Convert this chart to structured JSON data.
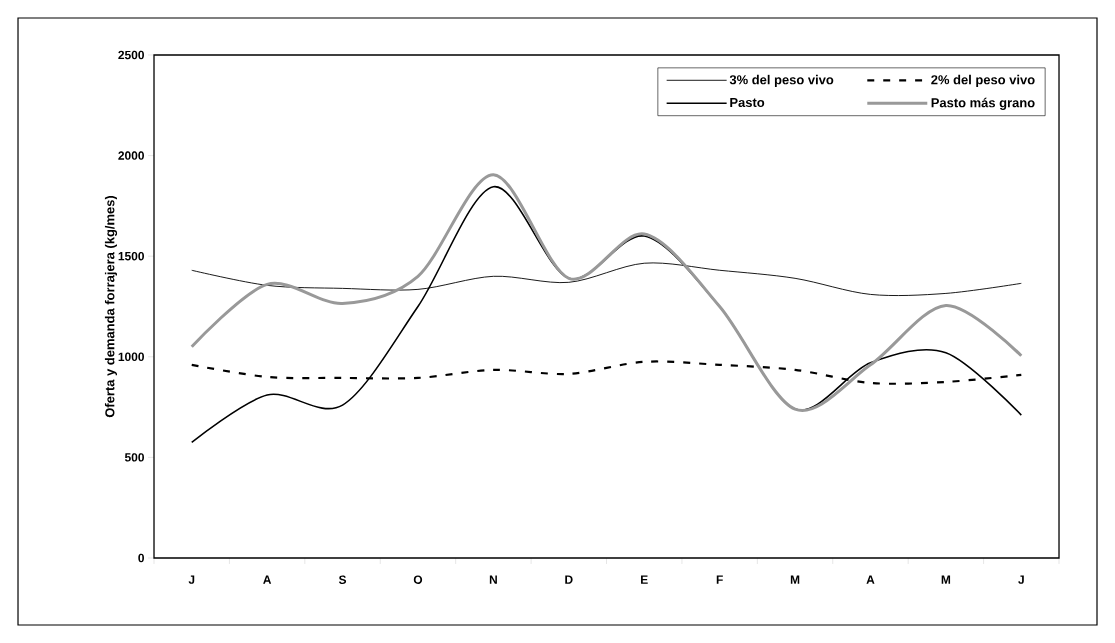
{
  "chart_data": {
    "type": "line",
    "ylabel": "Oferta y demanda forrajera (kg/mes)",
    "categories": [
      "J",
      "A",
      "S",
      "O",
      "N",
      "D",
      "E",
      "F",
      "M",
      "A",
      "M",
      "J"
    ],
    "series": [
      {
        "name": "3% del peso vivo",
        "color": "#000000",
        "line_style": "solid",
        "values": [
          1430,
          1355,
          1340,
          1335,
          1400,
          1370,
          1465,
          1430,
          1390,
          1310,
          1315,
          1365
        ]
      },
      {
        "name": "2% del peso vivo",
        "color": "#000000",
        "line_style": "dashed",
        "values": [
          960,
          900,
          895,
          895,
          935,
          915,
          975,
          960,
          935,
          870,
          875,
          910
        ]
      },
      {
        "name": "Pasto",
        "color": "#000000",
        "line_style": "solid",
        "values": [
          575,
          810,
          760,
          1250,
          1845,
          1390,
          1600,
          1250,
          740,
          970,
          1020,
          710
        ]
      },
      {
        "name": "Pasto más grano",
        "color": "#999999",
        "line_style": "solid",
        "values": [
          1050,
          1360,
          1265,
          1400,
          1905,
          1390,
          1610,
          1250,
          740,
          960,
          1255,
          1005
        ]
      }
    ],
    "ylim": [
      0,
      2500
    ],
    "yticks": [
      0,
      500,
      1000,
      1500,
      2000,
      2500
    ],
    "grid": false,
    "legend": "top right",
    "marker": "none"
  }
}
